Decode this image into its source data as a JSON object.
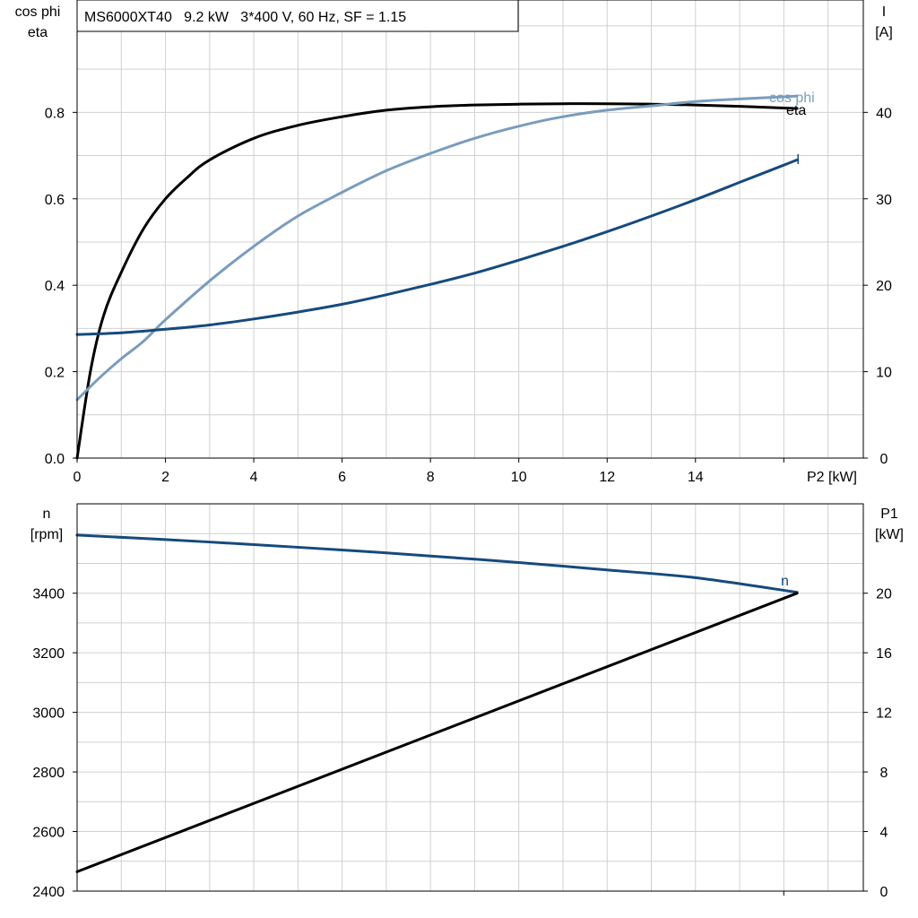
{
  "title": "MS6000XT40   9.2 kW   3*400 V, 60 Hz, SF = 1.15",
  "colors": {
    "eta": "#000000",
    "cos_phi": "#7a9cbd",
    "I": "#154a7e",
    "n": "#154a7e",
    "P1": "#000000"
  },
  "chart_data": [
    {
      "type": "line",
      "title": "MS6000XT40   9.2 kW   3*400 V, 60 Hz, SF = 1.15",
      "xlabel": "P2 [kW]",
      "ylabel_left": [
        "cos phi",
        "eta"
      ],
      "ylabel_right": [
        "I",
        "[A]"
      ],
      "xlim": [
        0,
        17.8
      ],
      "ylim_left": [
        0,
        1.06
      ],
      "ylim_right": [
        0,
        53
      ],
      "x_ticks": [
        0,
        2,
        4,
        6,
        8,
        10,
        12,
        14
      ],
      "y_ticks_left": [
        "0.0",
        "0.2",
        "0.4",
        "0.6",
        "0.8"
      ],
      "y_ticks_right": [
        "0",
        "10",
        "20",
        "30",
        "40"
      ],
      "grid": true,
      "series": [
        {
          "name": "eta",
          "axis": "left",
          "x": [
            0,
            0.3,
            0.6,
            1,
            1.5,
            2,
            2.5,
            3,
            4,
            5,
            6,
            7,
            8,
            9,
            10,
            11,
            12,
            13,
            14,
            15,
            16,
            16.3
          ],
          "y": [
            0,
            0.2,
            0.33,
            0.43,
            0.53,
            0.6,
            0.65,
            0.69,
            0.74,
            0.77,
            0.79,
            0.805,
            0.813,
            0.817,
            0.819,
            0.82,
            0.82,
            0.819,
            0.817,
            0.814,
            0.81,
            0.809
          ]
        },
        {
          "name": "cos phi",
          "axis": "left",
          "x": [
            0,
            0.5,
            1,
            1.5,
            2,
            3,
            4,
            5,
            6,
            7,
            8,
            9,
            10,
            11,
            12,
            13,
            14,
            15,
            16,
            16.3
          ],
          "y": [
            0.135,
            0.185,
            0.23,
            0.27,
            0.32,
            0.41,
            0.49,
            0.56,
            0.615,
            0.665,
            0.705,
            0.74,
            0.768,
            0.79,
            0.805,
            0.815,
            0.825,
            0.831,
            0.836,
            0.838
          ]
        },
        {
          "name": "I",
          "axis": "right",
          "x": [
            0,
            1,
            2,
            3,
            4,
            5,
            6,
            7,
            8,
            9,
            10,
            11,
            12,
            13,
            14,
            15,
            16,
            16.3
          ],
          "y": [
            14.3,
            14.5,
            14.9,
            15.4,
            16.1,
            16.9,
            17.8,
            18.9,
            20.1,
            21.4,
            22.9,
            24.5,
            26.2,
            28.0,
            29.9,
            31.9,
            33.9,
            34.5
          ]
        }
      ]
    },
    {
      "type": "line",
      "ylabel_left": [
        "n",
        "[rpm]"
      ],
      "ylabel_right": [
        "P1",
        "[kW]"
      ],
      "xlim": [
        0,
        17.8
      ],
      "ylim_left": [
        2400,
        3700
      ],
      "ylim_right": [
        0,
        26
      ],
      "y_ticks_left": [
        "2400",
        "2600",
        "2800",
        "3000",
        "3200",
        "3400"
      ],
      "y_ticks_right": [
        "0",
        "4",
        "8",
        "12",
        "16",
        "20"
      ],
      "grid": true,
      "series": [
        {
          "name": "n",
          "axis": "left",
          "x": [
            0,
            2,
            4,
            6,
            8,
            10,
            12,
            14,
            16.3
          ],
          "y": [
            3595,
            3580,
            3563,
            3545,
            3525,
            3503,
            3478,
            3452,
            3403
          ]
        },
        {
          "axis": "right",
          "x": [
            0,
            16.3
          ],
          "y": [
            1.3,
            20
          ]
        }
      ]
    }
  ]
}
